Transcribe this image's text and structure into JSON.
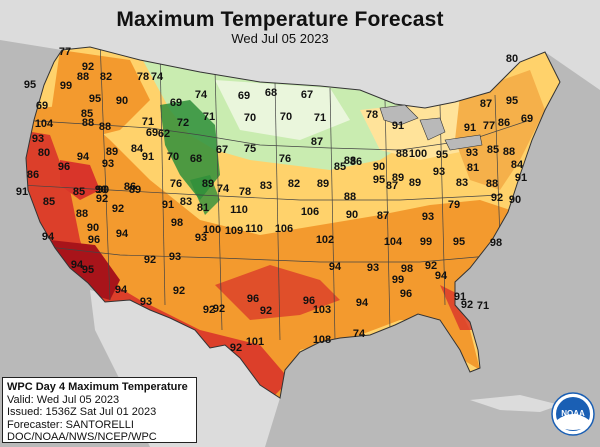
{
  "map": {
    "title": "Maximum Temperature Forecast",
    "subtitle": "Wed Jul 05 2023",
    "colors": {
      "ocean": "#b9b9b9",
      "land_outside": "#dcdcdc",
      "border": "#444444",
      "temp_60s": "#2e8f3a",
      "temp_70s": "#c9ecb0",
      "temp_70s_light": "#eaf6dc",
      "temp_80s": "#ffd26b",
      "temp_90s": "#f39a2e",
      "temp_100s": "#d9352a",
      "temp_110s": "#a8141a",
      "noaa_blue": "#1a5fb4"
    },
    "temperatures": [
      {
        "value": "77"
      },
      {
        "value": "92"
      },
      {
        "value": "80"
      },
      {
        "value": "88"
      },
      {
        "value": "82"
      },
      {
        "value": "78"
      },
      {
        "value": "74"
      },
      {
        "value": "95"
      },
      {
        "value": "99"
      },
      {
        "value": "95"
      },
      {
        "value": "90"
      },
      {
        "value": "69"
      },
      {
        "value": "74"
      },
      {
        "value": "69"
      },
      {
        "value": "68"
      },
      {
        "value": "67"
      },
      {
        "value": "69"
      },
      {
        "value": "71"
      },
      {
        "value": "72"
      },
      {
        "value": "71"
      },
      {
        "value": "70"
      },
      {
        "value": "70"
      },
      {
        "value": "71"
      },
      {
        "value": "78"
      },
      {
        "value": "91"
      },
      {
        "value": "87"
      },
      {
        "value": "95"
      },
      {
        "value": "85"
      },
      {
        "value": "69"
      },
      {
        "value": "88"
      },
      {
        "value": "62"
      },
      {
        "value": "104"
      },
      {
        "value": "88"
      },
      {
        "value": "91"
      },
      {
        "value": "77"
      },
      {
        "value": "86"
      },
      {
        "value": "84"
      },
      {
        "value": "70"
      },
      {
        "value": "68"
      },
      {
        "value": "67"
      },
      {
        "value": "75"
      },
      {
        "value": "76"
      },
      {
        "value": "93"
      },
      {
        "value": "94"
      },
      {
        "value": "89"
      },
      {
        "value": "87"
      },
      {
        "value": "69"
      },
      {
        "value": "96"
      },
      {
        "value": "93"
      },
      {
        "value": "91"
      },
      {
        "value": "83"
      },
      {
        "value": "86"
      },
      {
        "value": "88"
      },
      {
        "value": "80"
      },
      {
        "value": "100"
      },
      {
        "value": "95"
      },
      {
        "value": "93"
      },
      {
        "value": "85"
      },
      {
        "value": "74"
      },
      {
        "value": "78"
      },
      {
        "value": "83"
      },
      {
        "value": "82"
      },
      {
        "value": "85"
      },
      {
        "value": "90"
      },
      {
        "value": "89"
      },
      {
        "value": "93"
      },
      {
        "value": "81"
      },
      {
        "value": "88"
      },
      {
        "value": "84"
      },
      {
        "value": "86"
      },
      {
        "value": "85"
      },
      {
        "value": "90"
      },
      {
        "value": "86"
      },
      {
        "value": "76"
      },
      {
        "value": "89"
      },
      {
        "value": "95"
      },
      {
        "value": "91"
      },
      {
        "value": "89"
      },
      {
        "value": "88"
      },
      {
        "value": "87"
      },
      {
        "value": "89"
      },
      {
        "value": "83"
      },
      {
        "value": "88"
      },
      {
        "value": "91"
      },
      {
        "value": "90"
      },
      {
        "value": "92"
      },
      {
        "value": "89"
      },
      {
        "value": "83"
      },
      {
        "value": "81"
      },
      {
        "value": "106"
      },
      {
        "value": "90"
      },
      {
        "value": "87"
      },
      {
        "value": "93"
      },
      {
        "value": "79"
      },
      {
        "value": "92"
      },
      {
        "value": "90"
      },
      {
        "value": "88"
      },
      {
        "value": "92"
      },
      {
        "value": "91"
      },
      {
        "value": "110"
      },
      {
        "value": "85"
      },
      {
        "value": "98"
      },
      {
        "value": "100"
      },
      {
        "value": "109"
      },
      {
        "value": "110"
      },
      {
        "value": "106"
      },
      {
        "value": "102"
      },
      {
        "value": "104"
      },
      {
        "value": "99"
      },
      {
        "value": "95"
      },
      {
        "value": "98"
      },
      {
        "value": "96"
      },
      {
        "value": "94"
      },
      {
        "value": "90"
      },
      {
        "value": "94"
      },
      {
        "value": "93"
      },
      {
        "value": "92"
      },
      {
        "value": "93"
      },
      {
        "value": "94"
      },
      {
        "value": "95"
      },
      {
        "value": "94"
      },
      {
        "value": "93"
      },
      {
        "value": "92"
      },
      {
        "value": "92"
      },
      {
        "value": "92"
      },
      {
        "value": "96"
      },
      {
        "value": "96"
      },
      {
        "value": "94"
      },
      {
        "value": "93"
      },
      {
        "value": "98"
      },
      {
        "value": "92"
      },
      {
        "value": "99"
      },
      {
        "value": "96"
      },
      {
        "value": "94"
      },
      {
        "value": "92"
      },
      {
        "value": "103"
      },
      {
        "value": "94"
      },
      {
        "value": "91"
      },
      {
        "value": "92"
      },
      {
        "value": "71"
      },
      {
        "value": "92"
      },
      {
        "value": "101"
      },
      {
        "value": "108"
      },
      {
        "value": "74"
      }
    ]
  },
  "info": {
    "line1": "WPC Day 4 Maximum Temperature",
    "line2": "Valid: Wed Jul 05 2023",
    "line3": "Issued: 1536Z Sat Jul 01 2023",
    "line4": "Forecaster: SANTORELLI",
    "line5": "DOC/NOAA/NWS/NCEP/WPC"
  },
  "logo": {
    "icon": "noaa-logo-icon",
    "text": "NOAA"
  }
}
